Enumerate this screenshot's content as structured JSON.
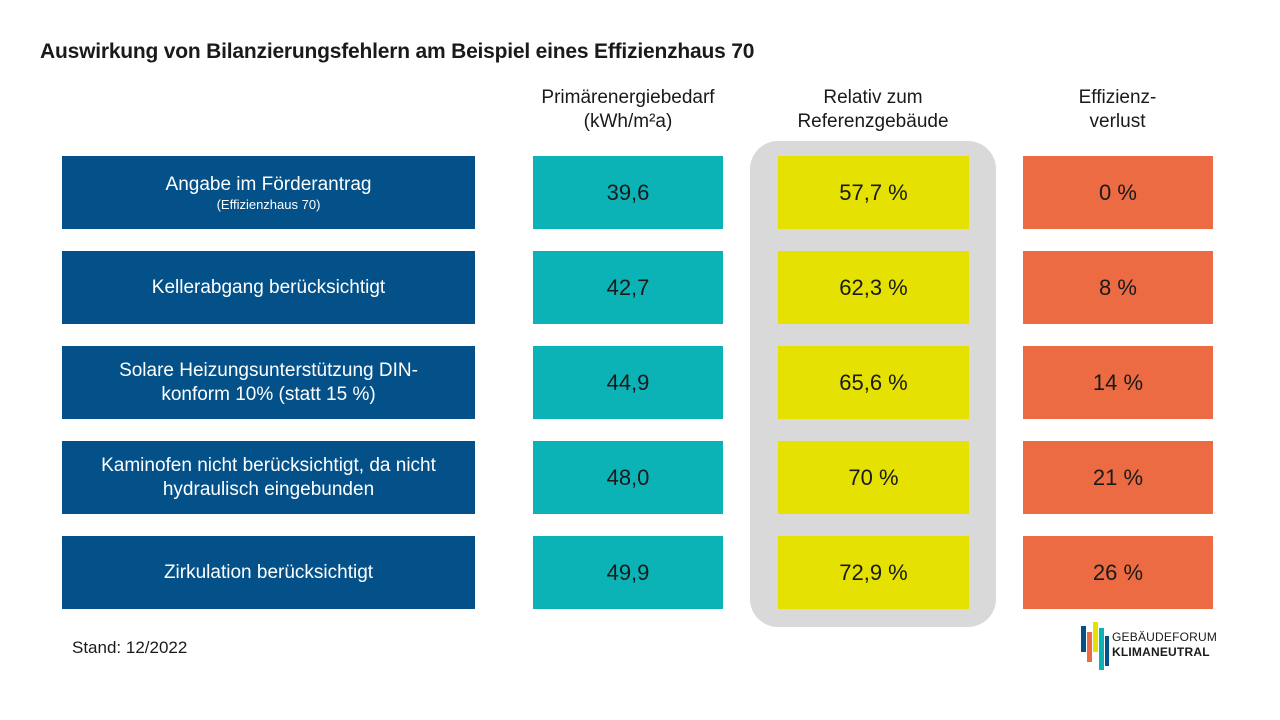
{
  "title": "Auswirkung von Bilanzierungsfehlern am Beispiel eines Effizienzhaus 70",
  "headers": {
    "primary": [
      "Primärenergiebedarf",
      "(kWh/m²a)"
    ],
    "relativ": [
      "Relativ zum",
      "Referenzgebäude"
    ],
    "verlust": [
      "Effizienz-",
      "verlust"
    ]
  },
  "colors": {
    "label_bg": "#045189",
    "primary_bg": "#0bb3b7",
    "relativ_bg": "#e5e100",
    "verlust_bg": "#ec6b43",
    "highlight_bg": "#d9d9d9"
  },
  "chart_data": {
    "type": "table",
    "title": "Auswirkung von Bilanzierungsfehlern am Beispiel eines Effizienzhaus 70",
    "columns": [
      "",
      "Primärenergiebedarf (kWh/m²a)",
      "Relativ zum Referenzgebäude",
      "Effizienzverlust"
    ],
    "rows": [
      {
        "label": [
          "Angabe im Förderantrag"
        ],
        "sublabel": "(Effizienzhaus 70)",
        "primary": "39,6",
        "relativ": "57,7 %",
        "verlust": "0 %"
      },
      {
        "label": [
          "Kellerabgang berücksichtigt"
        ],
        "sublabel": "",
        "primary": "42,7",
        "relativ": "62,3 %",
        "verlust": "8 %"
      },
      {
        "label": [
          "Solare Heizungsunterstützung DIN-",
          "konform 10% (statt 15 %)"
        ],
        "sublabel": "",
        "primary": "44,9",
        "relativ": "65,6 %",
        "verlust": "14 %"
      },
      {
        "label": [
          "Kaminofen nicht berücksichtigt, da nicht",
          "hydraulisch eingebunden"
        ],
        "sublabel": "",
        "primary": "48,0",
        "relativ": "70 %",
        "verlust": "21 %"
      },
      {
        "label": [
          "Zirkulation berücksichtigt"
        ],
        "sublabel": "",
        "primary": "49,9",
        "relativ": "72,9 %",
        "verlust": "26 %"
      }
    ]
  },
  "footer": "Stand: 12/2022",
  "logo": {
    "line1": "GEBÄUDEFORUM",
    "line2": "KLIMANEUTRAL"
  }
}
